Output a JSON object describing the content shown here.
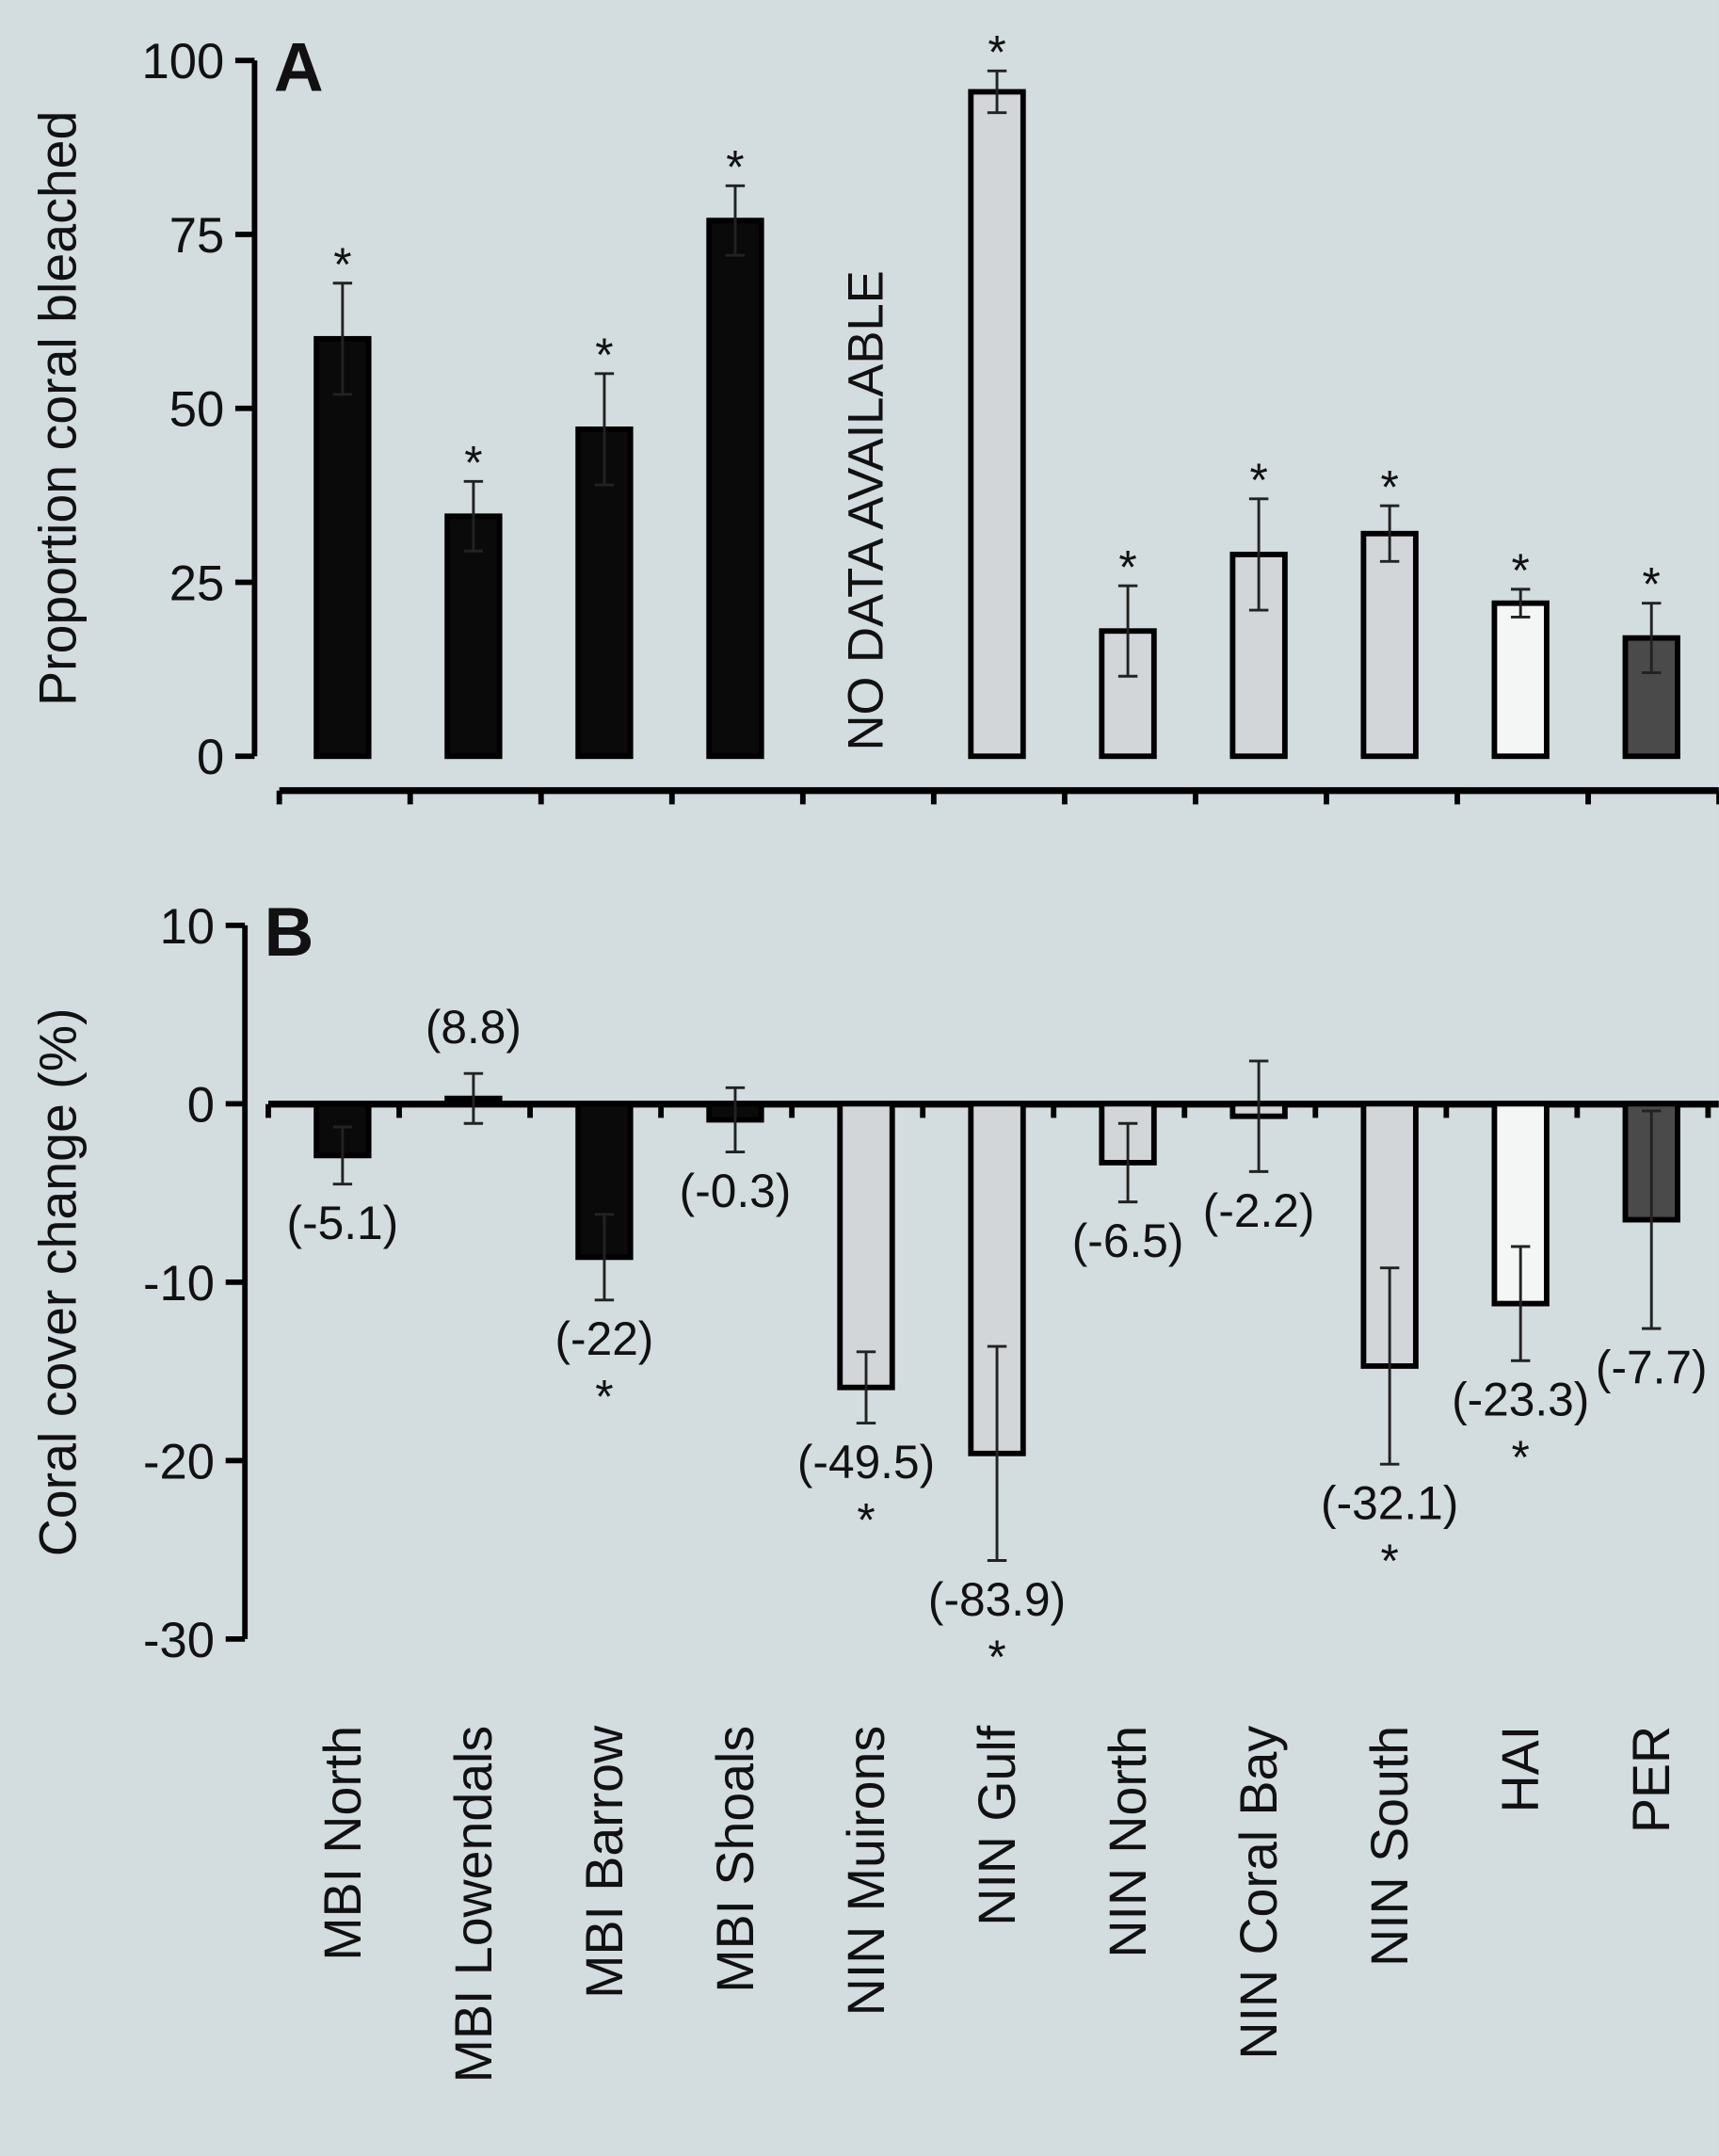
{
  "chart_data": [
    {
      "type": "bar",
      "panel": "A",
      "y_label": "Proportion coral bleached",
      "annotation": "NO DATA AVAILABLE",
      "ylim": [
        0,
        100
      ],
      "yticks": [
        0,
        25,
        50,
        75,
        100
      ],
      "values": [
        60,
        34.5,
        47,
        77,
        null,
        95.5,
        18,
        29,
        32,
        22,
        17
      ],
      "errors": [
        8,
        5,
        8,
        5,
        null,
        3,
        6.5,
        8,
        4,
        2,
        5
      ],
      "markers": [
        "*",
        "*",
        "*",
        "*",
        null,
        "*",
        "*",
        "*",
        "*",
        "*",
        "*"
      ],
      "colors": [
        "#0a0a0a",
        "#0a0a0a",
        "#0a0a0a",
        "#0a0a0a",
        null,
        "#d3d6d8",
        "#d3d6d8",
        "#d3d6d8",
        "#d3d6d8",
        "#f4f6f6",
        "#4a4a4a"
      ]
    },
    {
      "type": "bar",
      "panel": "B",
      "y_label": "Coral cover change (%)",
      "categories": [
        "MBI North",
        "MBI Lowendals",
        "MBI Barrow",
        "MBI Shoals",
        "NIN Muirons",
        "NIN Gulf",
        "NIN North",
        "NIN Coral Bay",
        "NIN South",
        "HAI",
        "PER"
      ],
      "ylim": [
        -30,
        10
      ],
      "yticks": [
        -30,
        -20,
        -10,
        0,
        10
      ],
      "values": [
        -2.9,
        0.3,
        -8.6,
        -0.9,
        -15.9,
        -19.6,
        -3.3,
        -0.7,
        -14.7,
        -11.2,
        -6.5
      ],
      "errors": [
        1.6,
        1.4,
        2.4,
        1.8,
        2.0,
        6.0,
        2.2,
        3.1,
        5.5,
        3.2,
        6.1
      ],
      "labels": [
        "(-5.1)",
        "(8.8)",
        "(-22)",
        "(-0.3)",
        "(-49.5)",
        "(-83.9)",
        "(-6.5)",
        "(-2.2)",
        "(-32.1)",
        "(-23.3)",
        "(-7.7)"
      ],
      "markers": [
        null,
        null,
        "*",
        null,
        "*",
        "*",
        null,
        null,
        "*",
        "*",
        null
      ],
      "colors": [
        "#0a0a0a",
        "#0a0a0a",
        "#0a0a0a",
        "#0a0a0a",
        "#d3d6d8",
        "#d3d6d8",
        "#d3d6d8",
        "#d3d6d8",
        "#d3d6d8",
        "#f4f6f6",
        "#4a4a4a"
      ]
    }
  ]
}
